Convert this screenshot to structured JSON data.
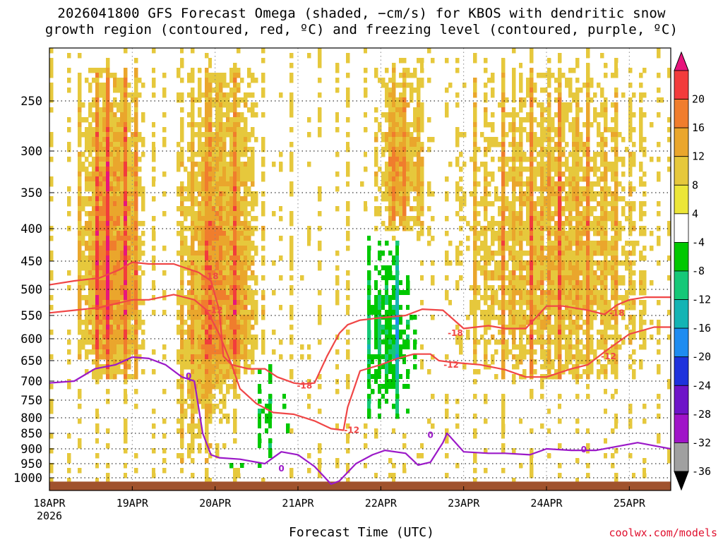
{
  "title": {
    "line1": "2026041800 GFS Forecast Omega (shaded, −cm/s) for KBOS with dendritic snow",
    "line2": "growth region (contoured, red, ºC) and freezing level (contoured, purple, ºC)"
  },
  "credit": "coolwx.com/models",
  "chart_data": {
    "type": "heatmap",
    "title": "2026041800 GFS Forecast Omega (shaded, −cm/s) for KBOS with dendritic snow growth region (contoured, red, ºC) and freezing level (contoured, purple, ºC)",
    "xlabel": "Forecast Time (UTC)",
    "ylabel": "",
    "x_axis": {
      "unit": "days since 18APR 00Z",
      "range": [
        0,
        7.5
      ],
      "ticks": [
        {
          "value": 0,
          "label": "18APR",
          "sublabel": "2026"
        },
        {
          "value": 1,
          "label": "19APR"
        },
        {
          "value": 2,
          "label": "20APR"
        },
        {
          "value": 3,
          "label": "21APR"
        },
        {
          "value": 4,
          "label": "22APR"
        },
        {
          "value": 5,
          "label": "23APR"
        },
        {
          "value": 6,
          "label": "24APR"
        },
        {
          "value": 7,
          "label": "25APR"
        }
      ]
    },
    "y_axis": {
      "unit": "hPa",
      "range": [
        1020,
        200
      ],
      "ticks": [
        250,
        300,
        350,
        400,
        450,
        500,
        550,
        600,
        650,
        700,
        750,
        800,
        850,
        900,
        950,
        1000
      ]
    },
    "colorbar": {
      "levels": [
        20,
        16,
        12,
        8,
        4,
        -4,
        -8,
        -12,
        -16,
        -20,
        -24,
        -28,
        -32,
        -36
      ],
      "colors": [
        "#e8147c",
        "#f23c3c",
        "#f07d2d",
        "#eaa62c",
        "#e6c83c",
        "#ece638",
        "#ffffff",
        "#00c800",
        "#16c878",
        "#14b4b4",
        "#1e8cf0",
        "#1e32dc",
        "#6e14c8",
        "#a014c8",
        "#a0a0a0",
        "#000000"
      ]
    },
    "omega_features": [
      {
        "name": "ascent band 19APR",
        "x_range": [
          0.3,
          1.2
        ],
        "p_range": [
          220,
          700
        ],
        "peak": 20
      },
      {
        "name": "ascent band 20APR",
        "x_range": [
          1.5,
          2.6
        ],
        "p_range": [
          220,
          950
        ],
        "peak": 18
      },
      {
        "name": "subsidence 20APR low levels",
        "x_range": [
          1.7,
          3.0
        ],
        "p_range": [
          650,
          960
        ],
        "peak": -12
      },
      {
        "name": "ascent 22APR",
        "x_range": [
          3.9,
          4.6
        ],
        "p_range": [
          220,
          420
        ],
        "peak": 14
      },
      {
        "name": "subsidence 22APR",
        "x_range": [
          3.7,
          4.5
        ],
        "p_range": [
          400,
          800
        ],
        "peak": -16
      },
      {
        "name": "ascent 23-25APR upper",
        "x_range": [
          4.8,
          7.4
        ],
        "p_range": [
          220,
          700
        ],
        "peak": 12
      }
    ],
    "series": [
      {
        "name": "-18 C isotherm",
        "color": "#f04646",
        "label": "-18",
        "x": [
          0,
          0.3,
          0.6,
          0.85,
          1.0,
          1.2,
          1.5,
          1.8,
          1.95,
          2.05,
          2.1,
          2.2,
          2.4,
          2.6,
          2.75,
          2.95,
          3.05,
          3.2,
          3.35,
          3.5,
          3.6,
          3.75,
          4.0,
          4.3,
          4.5,
          4.75,
          5.0,
          5.3,
          5.5,
          5.75,
          6.0,
          6.2,
          6.5,
          6.7,
          6.85,
          7.0,
          7.2,
          7.5
        ],
        "p": [
          492,
          485,
          480,
          465,
          452,
          455,
          455,
          470,
          485,
          540,
          640,
          660,
          670,
          670,
          690,
          705,
          708,
          705,
          640,
          588,
          570,
          560,
          555,
          550,
          538,
          540,
          578,
          572,
          578,
          578,
          532,
          532,
          540,
          548,
          530,
          520,
          515,
          515
        ]
      },
      {
        "name": "-12 C isotherm",
        "color": "#f04646",
        "label": "-12",
        "x": [
          0,
          0.3,
          0.6,
          1.0,
          1.2,
          1.5,
          1.75,
          1.9,
          2.05,
          2.2,
          2.3,
          2.5,
          2.7,
          2.95,
          3.2,
          3.4,
          3.55,
          3.6,
          3.75,
          4.0,
          4.2,
          4.4,
          4.6,
          4.7,
          4.9,
          5.2,
          5.5,
          5.75,
          6.0,
          6.3,
          6.5,
          6.7,
          7.0,
          7.3,
          7.5
        ],
        "p": [
          545,
          540,
          535,
          520,
          520,
          510,
          520,
          540,
          590,
          660,
          720,
          760,
          785,
          790,
          810,
          835,
          840,
          770,
          675,
          660,
          645,
          635,
          635,
          650,
          655,
          660,
          672,
          690,
          690,
          670,
          660,
          630,
          590,
          575,
          575
        ]
      },
      {
        "name": "0 C isotherm (freezing level)",
        "color": "#9b19c8",
        "label": "0",
        "x": [
          0,
          0.3,
          0.55,
          0.8,
          1.0,
          1.2,
          1.4,
          1.6,
          1.75,
          1.85,
          1.95,
          2.05,
          2.3,
          2.6,
          2.8,
          3.0,
          3.2,
          3.4,
          3.5,
          3.7,
          3.9,
          4.05,
          4.3,
          4.45,
          4.6,
          4.75,
          4.8,
          5.0,
          5.3,
          5.5,
          5.8,
          6.0,
          6.3,
          6.6,
          6.9,
          7.1,
          7.3,
          7.5
        ],
        "p": [
          705,
          700,
          670,
          660,
          642,
          645,
          660,
          690,
          700,
          850,
          920,
          930,
          935,
          950,
          910,
          920,
          960,
          1010,
          1005,
          950,
          920,
          905,
          915,
          955,
          945,
          880,
          850,
          910,
          915,
          915,
          920,
          900,
          905,
          905,
          890,
          880,
          890,
          900
        ]
      }
    ],
    "contour_labels": [
      {
        "text": "-18",
        "x": 1.95,
        "p": 477
      },
      {
        "text": "-12",
        "x": 2.0,
        "p": 540
      },
      {
        "text": "0",
        "x": 1.68,
        "p": 688
      },
      {
        "text": "-18",
        "x": 3.08,
        "p": 712
      },
      {
        "text": "-12",
        "x": 3.65,
        "p": 840
      },
      {
        "text": "0",
        "x": 2.8,
        "p": 968
      },
      {
        "text": "0",
        "x": 4.6,
        "p": 856
      },
      {
        "text": "-18",
        "x": 4.9,
        "p": 588
      },
      {
        "text": "-12",
        "x": 4.85,
        "p": 660
      },
      {
        "text": "-18",
        "x": 6.85,
        "p": 545
      },
      {
        "text": "-12",
        "x": 6.75,
        "p": 640
      },
      {
        "text": "0",
        "x": 6.45,
        "p": 902
      }
    ],
    "ground": {
      "color": "#a0522d",
      "p_top": 1006
    }
  }
}
